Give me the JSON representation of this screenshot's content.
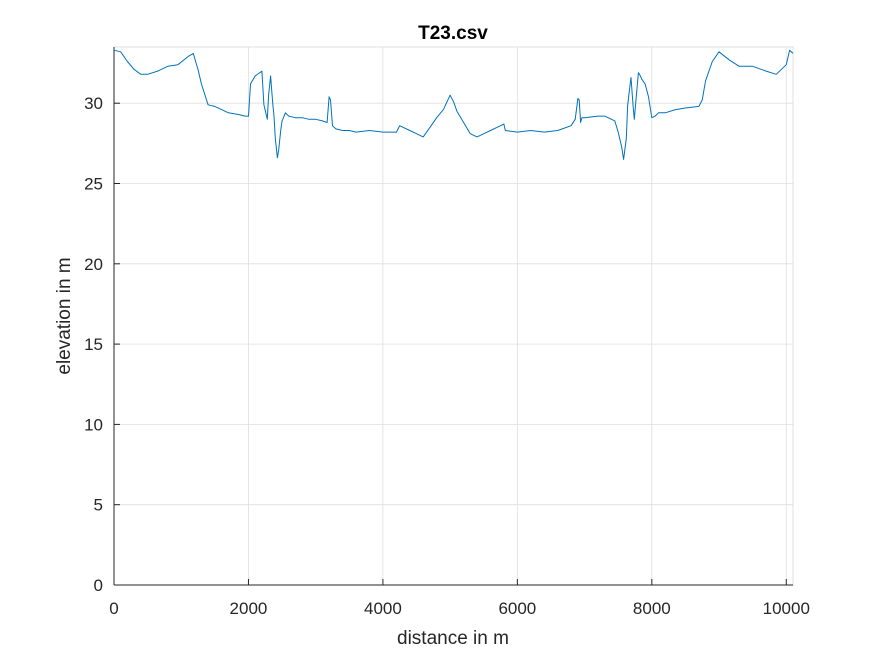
{
  "chart_data": {
    "type": "line",
    "title": "T23.csv",
    "xlabel": "distance in m",
    "ylabel": "elevation in m",
    "xlim": [
      0,
      10100
    ],
    "ylim": [
      0,
      33.5
    ],
    "x_ticks": [
      0,
      2000,
      4000,
      6000,
      8000,
      10000
    ],
    "y_ticks": [
      0,
      5,
      10,
      15,
      20,
      25,
      30
    ],
    "x_tick_labels": [
      "0",
      "2000",
      "4000",
      "6000",
      "8000",
      "10000"
    ],
    "y_tick_labels": [
      "0",
      "5",
      "10",
      "15",
      "20",
      "25",
      "30"
    ],
    "grid": true,
    "series": [
      {
        "color": "#0072BD",
        "x": [
          0,
          100,
          200,
          300,
          400,
          500,
          650,
          800,
          950,
          1100,
          1180,
          1250,
          1300,
          1400,
          1500,
          1600,
          1700,
          1850,
          1950,
          2000,
          2030,
          2100,
          2200,
          2230,
          2280,
          2300,
          2330,
          2360,
          2380,
          2400,
          2430,
          2450,
          2480,
          2500,
          2550,
          2600,
          2700,
          2800,
          2900,
          3000,
          3100,
          3170,
          3200,
          3220,
          3250,
          3300,
          3400,
          3500,
          3600,
          3800,
          4000,
          4200,
          4250,
          4300,
          4400,
          4500,
          4600,
          4700,
          4800,
          4900,
          5000,
          5050,
          5100,
          5200,
          5300,
          5400,
          5500,
          5600,
          5700,
          5800,
          5820,
          6000,
          6200,
          6400,
          6600,
          6800,
          6860,
          6900,
          6920,
          6940,
          6960,
          7000,
          7200,
          7300,
          7450,
          7500,
          7550,
          7580,
          7620,
          7640,
          7660,
          7690,
          7720,
          7740,
          7770,
          7800,
          7830,
          7850,
          7900,
          7950,
          8000,
          8050,
          8100,
          8200,
          8350,
          8500,
          8700,
          8750,
          8800,
          8900,
          9000,
          9150,
          9300,
          9500,
          9700,
          9850,
          10000,
          10050,
          10100
        ],
        "y": [
          33.3,
          33.2,
          32.6,
          32.1,
          31.8,
          31.8,
          32.0,
          32.3,
          32.4,
          32.9,
          33.1,
          32.1,
          31.2,
          29.9,
          29.8,
          29.6,
          29.4,
          29.3,
          29.2,
          29.2,
          31.2,
          31.7,
          32.0,
          29.9,
          29.0,
          30.5,
          31.7,
          30.0,
          29.2,
          27.8,
          26.6,
          27.1,
          28.3,
          28.9,
          29.4,
          29.2,
          29.1,
          29.1,
          29.0,
          29.0,
          28.9,
          28.8,
          30.4,
          30.2,
          28.6,
          28.4,
          28.3,
          28.3,
          28.2,
          28.3,
          28.2,
          28.2,
          28.6,
          28.5,
          28.3,
          28.1,
          27.9,
          28.5,
          29.1,
          29.6,
          30.5,
          30.1,
          29.5,
          28.8,
          28.1,
          27.9,
          28.1,
          28.3,
          28.5,
          28.7,
          28.3,
          28.2,
          28.3,
          28.2,
          28.3,
          28.6,
          29.0,
          30.3,
          30.2,
          28.8,
          29.1,
          29.1,
          29.2,
          29.2,
          28.9,
          28.2,
          27.3,
          26.5,
          27.8,
          29.8,
          30.6,
          31.6,
          29.9,
          29.0,
          30.5,
          31.9,
          31.7,
          31.5,
          31.2,
          30.4,
          29.1,
          29.2,
          29.4,
          29.4,
          29.6,
          29.7,
          29.8,
          30.2,
          31.4,
          32.6,
          33.2,
          32.7,
          32.3,
          32.3,
          32.0,
          31.8,
          32.4,
          33.3,
          33.1
        ]
      }
    ]
  }
}
